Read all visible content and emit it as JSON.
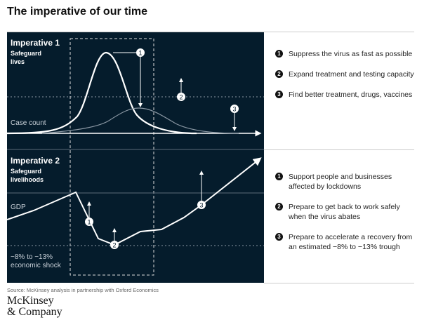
{
  "title": "The imperative of our time",
  "imperative1": {
    "heading": "Imperative 1",
    "sub1": "Safeguard",
    "sub2": "lives",
    "axis_label": "Case count",
    "items": [
      {
        "n": "1",
        "text": "Suppress the virus as fast as possible"
      },
      {
        "n": "2",
        "text": "Expand treatment and testing capacity"
      },
      {
        "n": "3",
        "text": "Find better treatment, drugs, vaccines"
      }
    ]
  },
  "imperative2": {
    "heading": "Imperative 2",
    "sub1": "Safeguard",
    "sub2": "livelihoods",
    "axis_label": "GDP",
    "shock1": "−8% to −13%",
    "shock2": "economic shock",
    "items": [
      {
        "n": "1",
        "text": "Support people and businesses affected by lockdowns"
      },
      {
        "n": "2",
        "text": "Prepare to get back to work safely when the virus abates"
      },
      {
        "n": "3",
        "text": "Prepare to accelerate a recovery from an estimated −8% to −13% trough"
      }
    ]
  },
  "source": "Source: McKinsey analysis in partnership with Oxford Economics",
  "logo": {
    "line1": "McKinsey",
    "line2": "& Company"
  },
  "colors": {
    "panel": "#051c2c"
  }
}
